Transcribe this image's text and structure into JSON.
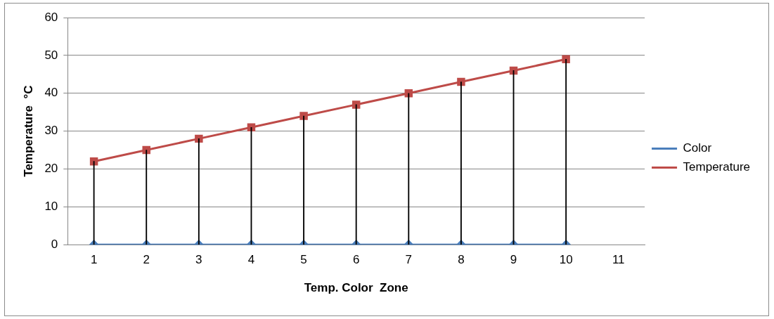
{
  "chart_data": {
    "type": "line",
    "xlabel": "Temp. Color  Zone",
    "ylabel": "Temperature  °C",
    "categories": [
      "1",
      "2",
      "3",
      "4",
      "5",
      "6",
      "7",
      "8",
      "9",
      "10",
      "11"
    ],
    "series": [
      {
        "name": "Color",
        "color": "#4a7ebb",
        "marker": "diamond",
        "values": [
          0,
          0,
          0,
          0,
          0,
          0,
          0,
          0,
          0,
          0,
          null
        ]
      },
      {
        "name": "Temperature",
        "color": "#be4b48",
        "marker": "square",
        "values": [
          22,
          25,
          28,
          31,
          34,
          37,
          40,
          43,
          46,
          49,
          null
        ]
      },
      {
        "type": "bar",
        "color": "#000000",
        "values": [
          22,
          25,
          28,
          31,
          34,
          37,
          40,
          43,
          46,
          49,
          null
        ]
      }
    ],
    "ylim": [
      0,
      60
    ],
    "yticks": [
      0,
      10,
      20,
      30,
      40,
      50,
      60
    ],
    "grid": "y",
    "legend": "right",
    "line_style": "solid"
  }
}
